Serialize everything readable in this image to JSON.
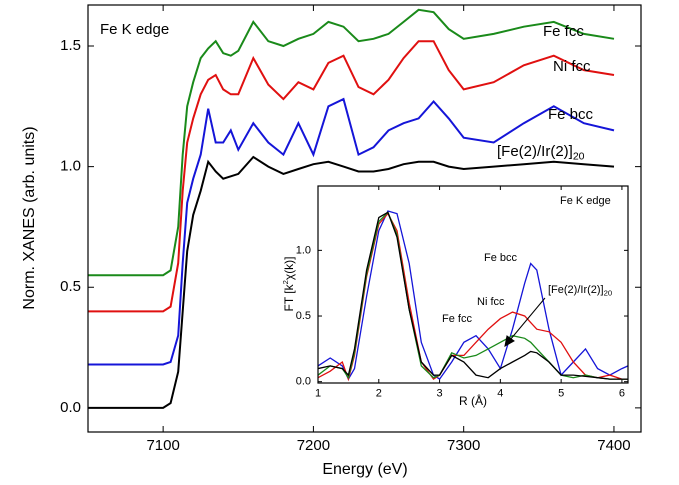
{
  "chart_data": [
    {
      "type": "line",
      "xlabel": "Energy (eV)",
      "ylabel": "Norm. XANES (arb. units)",
      "annotation": "Fe K edge",
      "xlim": [
        7050,
        7418
      ],
      "ylim": [
        -0.1,
        1.67
      ],
      "xticks": [
        7100,
        7200,
        7300,
        7400
      ],
      "yticks": [
        {
          "value": 0,
          "label": "0.0"
        },
        {
          "value": 0.5,
          "label": "0.5"
        },
        {
          "value": 1,
          "label": "1.0"
        },
        {
          "value": 1.5,
          "label": "1.5"
        }
      ],
      "x": [
        7050,
        7080,
        7100,
        7105,
        7110,
        7113,
        7116,
        7120,
        7125,
        7130,
        7135,
        7140,
        7145,
        7150,
        7160,
        7170,
        7180,
        7190,
        7200,
        7210,
        7220,
        7230,
        7240,
        7250,
        7260,
        7270,
        7280,
        7290,
        7300,
        7320,
        7340,
        7360,
        7380,
        7400
      ],
      "series": [
        {
          "name": "Fe fcc",
          "color": "#1a8a1a",
          "values": [
            0.55,
            0.55,
            0.55,
            0.57,
            0.75,
            1.05,
            1.25,
            1.35,
            1.45,
            1.49,
            1.52,
            1.47,
            1.46,
            1.48,
            1.6,
            1.52,
            1.5,
            1.53,
            1.55,
            1.6,
            1.58,
            1.52,
            1.53,
            1.55,
            1.6,
            1.65,
            1.64,
            1.57,
            1.53,
            1.55,
            1.58,
            1.6,
            1.55,
            1.53
          ]
        },
        {
          "name": "Ni fcc",
          "color": "#e01010",
          "values": [
            0.4,
            0.4,
            0.4,
            0.42,
            0.6,
            0.9,
            1.1,
            1.2,
            1.3,
            1.36,
            1.38,
            1.32,
            1.3,
            1.3,
            1.45,
            1.34,
            1.28,
            1.35,
            1.32,
            1.43,
            1.46,
            1.33,
            1.3,
            1.36,
            1.45,
            1.52,
            1.52,
            1.4,
            1.32,
            1.35,
            1.42,
            1.46,
            1.4,
            1.38
          ]
        },
        {
          "name": "Fe bcc",
          "color": "#1515d8",
          "values": [
            0.18,
            0.18,
            0.18,
            0.19,
            0.3,
            0.6,
            0.85,
            0.95,
            1.05,
            1.24,
            1.1,
            1.1,
            1.15,
            1.07,
            1.18,
            1.1,
            1.05,
            1.18,
            1.05,
            1.25,
            1.28,
            1.05,
            1.08,
            1.15,
            1.18,
            1.2,
            1.27,
            1.2,
            1.12,
            1.1,
            1.18,
            1.25,
            1.18,
            1.15
          ]
        },
        {
          "name": "[Fe(2)/Ir(2)]",
          "name_subscript": "20",
          "color": "#000000",
          "values": [
            0,
            0,
            0,
            0.02,
            0.15,
            0.4,
            0.65,
            0.8,
            0.9,
            1.02,
            0.98,
            0.95,
            0.96,
            0.97,
            1.04,
            1,
            0.97,
            0.99,
            1.01,
            1.02,
            1,
            0.98,
            0.98,
            0.99,
            1.01,
            1.02,
            1.02,
            1,
            0.99,
            1,
            1.01,
            1.02,
            1.01,
            1
          ]
        }
      ]
    },
    {
      "type": "line",
      "xlabel": "R (Å)",
      "ylabel": {
        "text": "FT [k",
        "sup": "2",
        "rest": "χ(k)]"
      },
      "annotation": "Fe K edge",
      "xlim": [
        1,
        6.1
      ],
      "ylim": [
        -0.01,
        1.49
      ],
      "xticks": [
        1,
        2,
        3,
        4,
        5,
        6
      ],
      "yticks": [
        {
          "value": 0,
          "label": "0.0"
        },
        {
          "value": 0.5,
          "label": "0.5"
        },
        {
          "value": 1,
          "label": "1.0"
        }
      ],
      "x": [
        1,
        1.2,
        1.4,
        1.5,
        1.6,
        1.8,
        2.0,
        2.15,
        2.3,
        2.5,
        2.7,
        2.9,
        3.0,
        3.2,
        3.4,
        3.6,
        3.8,
        4.0,
        4.2,
        4.4,
        4.5,
        4.6,
        4.8,
        5.0,
        5.2,
        5.4,
        5.6,
        5.8,
        6.0,
        6.1
      ],
      "series": [
        {
          "name": "Fe bcc",
          "color": "#1515d8",
          "values": [
            0.12,
            0.18,
            0.12,
            0.02,
            0.1,
            0.65,
            1.15,
            1.3,
            1.28,
            0.9,
            0.3,
            0.05,
            0.02,
            0.15,
            0.3,
            0.35,
            0.25,
            0.1,
            0.4,
            0.75,
            0.9,
            0.85,
            0.4,
            0.05,
            0.15,
            0.25,
            0.1,
            0.05,
            0.1,
            0.12
          ]
        },
        {
          "name": "Ni fcc",
          "color": "#e01010",
          "values": [
            0.03,
            0.08,
            0.15,
            0.02,
            0.2,
            0.8,
            1.2,
            1.28,
            1.15,
            0.6,
            0.15,
            0.02,
            0.05,
            0.2,
            0.2,
            0.3,
            0.4,
            0.48,
            0.53,
            0.5,
            0.45,
            0.4,
            0.38,
            0.3,
            0.15,
            0.05,
            0.03,
            0.05,
            0.02,
            0.02
          ]
        },
        {
          "name": "Fe fcc",
          "color": "#1a8a1a",
          "values": [
            0.05,
            0.12,
            0.1,
            0.03,
            0.22,
            0.82,
            1.22,
            1.29,
            1.12,
            0.55,
            0.12,
            0.03,
            0.05,
            0.22,
            0.18,
            0.2,
            0.25,
            0.3,
            0.35,
            0.33,
            0.3,
            0.25,
            0.15,
            0.05,
            0.03,
            0.05,
            0.03,
            0.02,
            0.02,
            0.02
          ]
        },
        {
          "name": "[Fe(2)/Ir(2)]",
          "name_subscript": "20",
          "color": "#000000",
          "values": [
            0.1,
            0.12,
            0.1,
            0.05,
            0.25,
            0.85,
            1.25,
            1.29,
            1.1,
            0.55,
            0.15,
            0.05,
            0.05,
            0.2,
            0.15,
            0.05,
            0.03,
            0.1,
            0.15,
            0.2,
            0.23,
            0.22,
            0.15,
            0.05,
            0.05,
            0.04,
            0.03,
            0.02,
            0.02,
            0.02
          ]
        }
      ]
    }
  ]
}
